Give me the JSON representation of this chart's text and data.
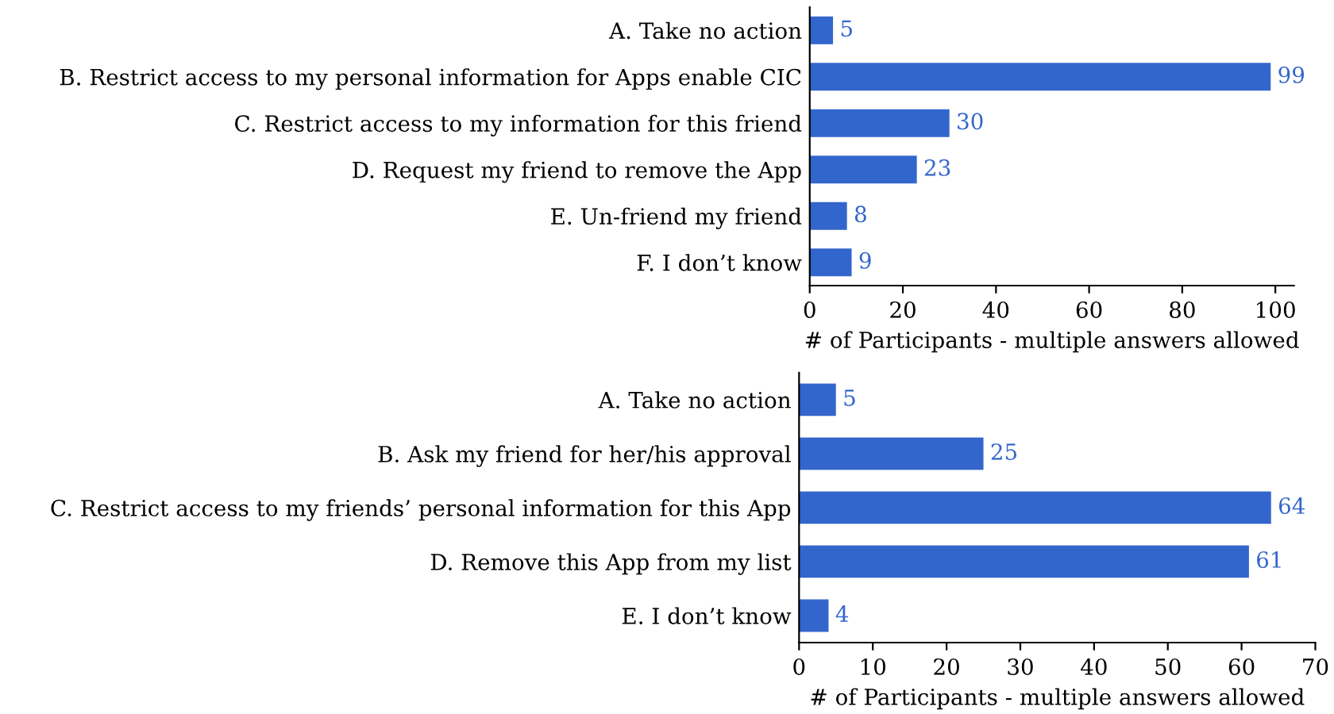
{
  "chart_data": [
    {
      "type": "bar",
      "orientation": "horizontal",
      "categories": [
        "A. Take no action",
        "B. Restrict access to my personal information for Apps enable CIC",
        "C. Restrict access to my information for this friend",
        "D. Request my friend to remove the App",
        "E. Un-friend my friend",
        "F. I don’t know"
      ],
      "values": [
        5,
        99,
        30,
        23,
        8,
        9
      ],
      "color": "#3366cc",
      "data_labels": true,
      "xlim": [
        0,
        104
      ],
      "xticks": [
        0,
        20,
        40,
        60,
        80,
        100
      ],
      "xlabel": "# of Participants - multiple answers allowed",
      "grid": false,
      "legend": false
    },
    {
      "type": "bar",
      "orientation": "horizontal",
      "categories": [
        "A. Take no action",
        "B. Ask my friend for her/his approval",
        "C. Restrict access to my friends’ personal information for this App",
        "D. Remove this App from my list",
        "E. I don’t know"
      ],
      "values": [
        5,
        25,
        64,
        61,
        4
      ],
      "color": "#3366cc",
      "data_labels": true,
      "xlim": [
        0,
        70
      ],
      "xticks": [
        0,
        10,
        20,
        30,
        40,
        50,
        60,
        70
      ],
      "xlabel": "# of Participants - multiple answers allowed",
      "grid": false,
      "legend": false
    }
  ]
}
